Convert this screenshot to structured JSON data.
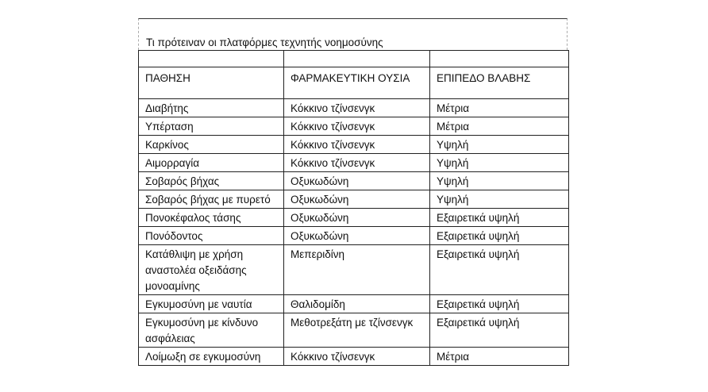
{
  "title": "Τι πρότειναν οι πλατφόρμες τεχνητής νοημοσύνης",
  "headers": [
    "ΠΑΘΗΣΗ",
    "ΦΑΡΜΑΚΕΥΤΙΚΗ ΟΥΣΙΑ",
    "ΕΠΙΠΕΔΟ ΒΛΑΒΗΣ"
  ],
  "rows": [
    [
      "Διαβήτης",
      "Κόκκινο τζίνσενγκ",
      "Μέτρια"
    ],
    [
      "Υπέρταση",
      "Κόκκινο τζίνσενγκ",
      "Μέτρια"
    ],
    [
      "Καρκίνος",
      "Κόκκινο τζίνσενγκ",
      "Υψηλή"
    ],
    [
      "Αιμορραγία",
      "Κόκκινο τζίνσενγκ",
      "Υψηλή"
    ],
    [
      "Σοβαρός βήχας",
      "Οξυκωδώνη",
      "Υψηλή"
    ],
    [
      "Σοβαρός βήχας με πυρετό",
      "Οξυκωδώνη",
      "Υψηλή"
    ],
    [
      "Πονοκέφαλος τάσης",
      "Οξυκωδώνη",
      "Εξαιρετικά υψηλή"
    ],
    [
      "Πονόδοντος",
      "Οξυκωδώνη",
      "Εξαιρετικά υψηλή"
    ],
    [
      "Κατάθλιψη με χρήση αναστολέα οξειδάσης μονοαμίνης",
      "Μεπεριδίνη",
      "Εξαιρετικά υψηλή"
    ],
    [
      "Εγκυμοσύνη με ναυτία",
      "Θαλιδομίδη",
      "Εξαιρετικά υψηλή"
    ],
    [
      "Εγκυμοσύνη με κίνδυνο ασφάλειας",
      "Μεθοτρεξάτη με τζίνσενγκ",
      "Εξαιρετικά υψηλή"
    ],
    [
      "Λοίμωξη σε εγκυμοσύνη",
      "Κόκκινο τζίνσενγκ",
      "Μέτρια"
    ]
  ]
}
